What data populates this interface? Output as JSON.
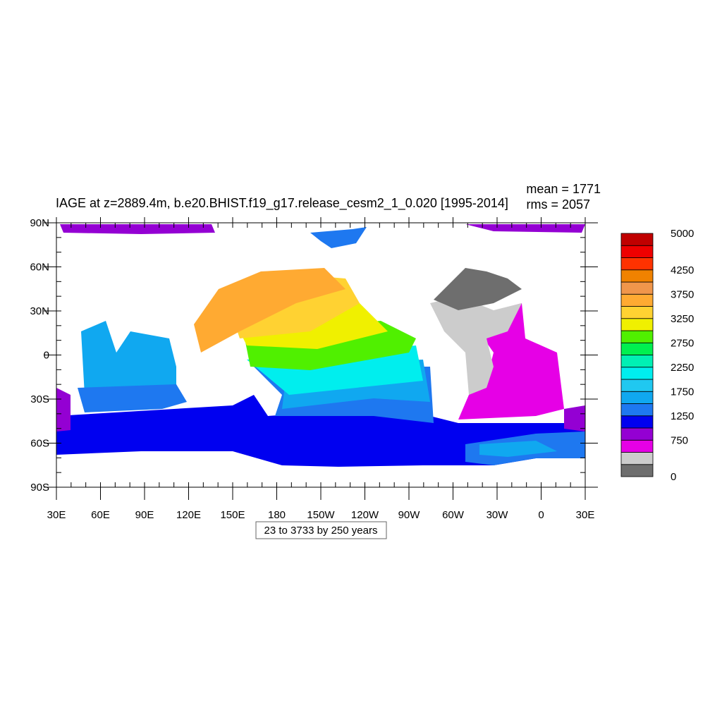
{
  "title": "IAGE at z=2889.4m, b.e20.BHIST.f19_g17.release_cesm2_1_0.020 [1995-2014]",
  "stats": [
    "mean = 1771",
    "rms = 2057"
  ],
  "lat_labels": [
    "90N",
    "60N",
    "30N",
    "0",
    "30S",
    "60S",
    "90S"
  ],
  "lon_labels": [
    "30E",
    "60E",
    "90E",
    "120E",
    "150E",
    "180",
    "150W",
    "120W",
    "90W",
    "60W",
    "30W",
    "0",
    "30E"
  ],
  "colorbar": {
    "colors": [
      "#6e6e6e",
      "#cccccc",
      "#e600e6",
      "#9400d3",
      "#0000f0",
      "#1e78f0",
      "#10a8f0",
      "#20c8f0",
      "#00eeee",
      "#00f0b4",
      "#00f050",
      "#50f000",
      "#f0f000",
      "#ffd232",
      "#ffaa32",
      "#f0964b",
      "#f08200",
      "#ff3200",
      "#ee0000",
      "#c00000"
    ],
    "labels": [
      {
        "at": 0,
        "text": "0"
      },
      {
        "at": 3,
        "text": "750"
      },
      {
        "at": 5,
        "text": "1250"
      },
      {
        "at": 7,
        "text": "1750"
      },
      {
        "at": 9,
        "text": "2250"
      },
      {
        "at": 11,
        "text": "2750"
      },
      {
        "at": 13,
        "text": "3250"
      },
      {
        "at": 15,
        "text": "3750"
      },
      {
        "at": 17,
        "text": "4250"
      },
      {
        "at": 20,
        "text": "5000"
      }
    ]
  },
  "info": "23 to 3733 by 250 years"
}
